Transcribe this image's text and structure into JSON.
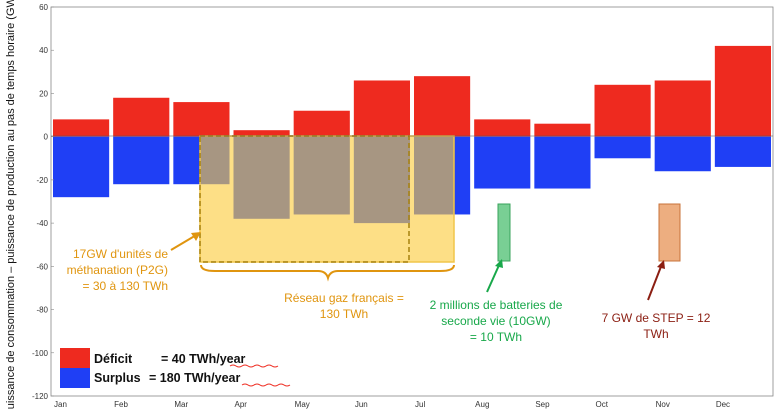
{
  "chart_data": {
    "type": "bar",
    "ylabel": "Puissance de consommation – puissance de production au pas de temps horaire (GW)",
    "ylim": [
      -120,
      60
    ],
    "yticks": [
      60,
      40,
      20,
      0,
      -20,
      -40,
      -60,
      -80,
      -100,
      -120
    ],
    "categories": [
      "Jan",
      "Feb",
      "Mar",
      "Apr",
      "May",
      "Jun",
      "Jul",
      "Aug",
      "Sep",
      "Oct",
      "Nov",
      "Dec"
    ],
    "grid": false,
    "legend_placement": "bottom-left",
    "series": [
      {
        "name": "Déficit",
        "color": "#ee2a1f",
        "values": [
          8,
          18,
          16,
          3,
          12,
          26,
          28,
          8,
          6,
          24,
          26,
          42
        ]
      },
      {
        "name": "Surplus",
        "color": "#1f3ff5",
        "values": [
          -28,
          -22,
          -22,
          -38,
          -36,
          -40,
          -36,
          -24,
          -24,
          -10,
          -16,
          -14
        ]
      }
    ],
    "legend": [
      {
        "label": "Déficit",
        "value_text": "= 40 TWh/year",
        "color": "#ee2a1f"
      },
      {
        "label": "Surplus",
        "value_text": "= 180 TWh/year",
        "color": "#1f3ff5"
      }
    ],
    "annotations": {
      "p2g": {
        "lines": [
          "17GW d'unités de",
          "méthanation (P2G)",
          "= 30 à 130 TWh"
        ],
        "color": "#e0950f"
      },
      "reseau": {
        "lines": [
          "Réseau gaz français =",
          "130 TWh"
        ],
        "color": "#e0950f"
      },
      "batteries": {
        "lines": [
          "2 millions de batteries de",
          "seconde vie (10GW)",
          "= 10 TWh"
        ],
        "color": "#18a84a"
      },
      "step": {
        "lines": [
          "7 GW de STEP = 12",
          "TWh"
        ],
        "color": "#8b1e12"
      }
    }
  }
}
